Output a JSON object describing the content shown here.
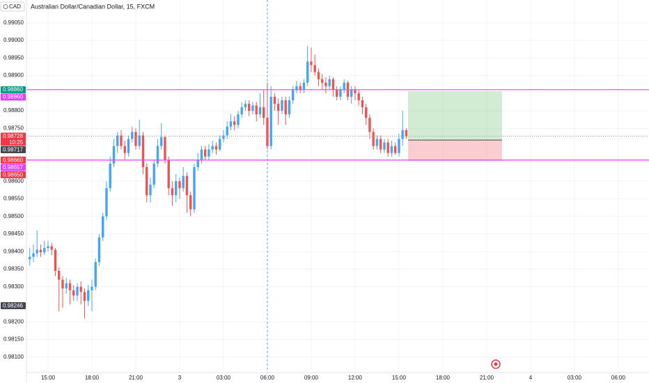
{
  "chart_data": {
    "type": "candlestick",
    "title": "Australian Dollar/Canadian Dollar, 15, FXCM",
    "currency": "CAD",
    "open": [
      0.98378,
      0.98385,
      0.98395,
      0.98405,
      0.98398,
      0.9841,
      0.98415,
      0.98405,
      0.98345,
      0.9832,
      0.98295,
      0.9831,
      0.9829,
      0.98275,
      0.983,
      0.98285,
      0.9826,
      0.9829,
      0.983,
      0.9837,
      0.9844,
      0.985,
      0.9858,
      0.9865,
      0.987,
      0.9873,
      0.987,
      0.9868,
      0.9872,
      0.9874,
      0.987,
      0.9873,
      0.9864,
      0.9856,
      0.9859,
      0.9865,
      0.987,
      0.98725,
      0.9866,
      0.9858,
      0.9856,
      0.986,
      0.9858,
      0.98615,
      0.9856,
      0.9852,
      0.9864,
      0.9866,
      0.9869,
      0.9867,
      0.9869,
      0.987,
      0.9869,
      0.9872,
      0.9873,
      0.98755,
      0.9877,
      0.9876,
      0.9879,
      0.9881,
      0.9882,
      0.988,
      0.98815,
      0.9879,
      0.9881,
      0.9878,
      0.987,
      0.9884,
      0.9882,
      0.988,
      0.9883,
      0.9879,
      0.9883,
      0.9886,
      0.9887,
      0.9886,
      0.9888,
      0.9894,
      0.9893,
      0.9891,
      0.9889,
      0.9888,
      0.9887,
      0.9889,
      0.9886,
      0.9884,
      0.9886,
      0.9888,
      0.9884,
      0.9886,
      0.9885,
      0.9883,
      0.9881,
      0.9878,
      0.9874,
      0.987,
      0.9872,
      0.9869,
      0.9871,
      0.9868,
      0.987,
      0.9868,
      0.9872,
      0.98745
    ],
    "high": [
      0.9841,
      0.9842,
      0.9846,
      0.9842,
      0.9843,
      0.9843,
      0.98425,
      0.9841,
      0.98355,
      0.9833,
      0.98325,
      0.9832,
      0.98305,
      0.9831,
      0.98315,
      0.98295,
      0.98305,
      0.9832,
      0.9838,
      0.9845,
      0.9851,
      0.986,
      0.9867,
      0.9872,
      0.9874,
      0.98745,
      0.98715,
      0.9873,
      0.98755,
      0.9875,
      0.98775,
      0.9874,
      0.9865,
      0.9861,
      0.9866,
      0.9872,
      0.98765,
      0.9873,
      0.9867,
      0.986,
      0.9862,
      0.9861,
      0.9864,
      0.98625,
      0.9857,
      0.9865,
      0.9868,
      0.987,
      0.987,
      0.98705,
      0.98715,
      0.9871,
      0.9873,
      0.98745,
      0.9877,
      0.9879,
      0.98785,
      0.988,
      0.98825,
      0.9883,
      0.9883,
      0.98825,
      0.98825,
      0.9885,
      0.9886,
      0.9888,
      0.9887,
      0.9885,
      0.98835,
      0.9884,
      0.9884,
      0.9884,
      0.9887,
      0.98885,
      0.9888,
      0.9889,
      0.98985,
      0.9898,
      0.9896,
      0.9892,
      0.98905,
      0.98895,
      0.989,
      0.98895,
      0.9887,
      0.9887,
      0.9889,
      0.98885,
      0.9887,
      0.9887,
      0.9886,
      0.9884,
      0.9882,
      0.9879,
      0.9875,
      0.9873,
      0.9873,
      0.9872,
      0.9872,
      0.98715,
      0.9871,
      0.98735,
      0.988,
      0.9875
    ],
    "low": [
      0.9836,
      0.9837,
      0.98385,
      0.98385,
      0.9839,
      0.984,
      0.9839,
      0.9833,
      0.9823,
      0.9824,
      0.9828,
      0.9825,
      0.9826,
      0.9826,
      0.9825,
      0.9821,
      0.98245,
      0.9823,
      0.9829,
      0.9836,
      0.9843,
      0.9849,
      0.9857,
      0.9864,
      0.9868,
      0.9869,
      0.9866,
      0.9867,
      0.9871,
      0.9869,
      0.9869,
      0.9862,
      0.9854,
      0.9854,
      0.9858,
      0.9864,
      0.9869,
      0.9865,
      0.9856,
      0.9853,
      0.9854,
      0.9855,
      0.9857,
      0.9851,
      0.985,
      0.9851,
      0.9863,
      0.9865,
      0.9866,
      0.9866,
      0.9868,
      0.98675,
      0.98685,
      0.9871,
      0.9872,
      0.98745,
      0.98745,
      0.9875,
      0.9878,
      0.988,
      0.98785,
      0.9879,
      0.9877,
      0.9878,
      0.9876,
      0.9869,
      0.9869,
      0.988,
      0.9876,
      0.9879,
      0.9876,
      0.9878,
      0.9882,
      0.9885,
      0.9885,
      0.9885,
      0.9887,
      0.9891,
      0.989,
      0.9887,
      0.9886,
      0.9885,
      0.9886,
      0.9884,
      0.9883,
      0.9883,
      0.9885,
      0.9883,
      0.9882,
      0.9883,
      0.98815,
      0.9879,
      0.9876,
      0.9872,
      0.9869,
      0.9869,
      0.9868,
      0.9868,
      0.9867,
      0.9867,
      0.98675,
      0.9867,
      0.987,
      0.9872
    ],
    "close": [
      0.98385,
      0.98395,
      0.98405,
      0.98398,
      0.9841,
      0.98415,
      0.98405,
      0.98345,
      0.9832,
      0.98295,
      0.9831,
      0.9829,
      0.98275,
      0.983,
      0.98285,
      0.9826,
      0.9829,
      0.983,
      0.9837,
      0.9844,
      0.985,
      0.9858,
      0.9865,
      0.987,
      0.9873,
      0.987,
      0.9868,
      0.9872,
      0.9874,
      0.987,
      0.9873,
      0.9864,
      0.9856,
      0.9859,
      0.9865,
      0.987,
      0.98725,
      0.9866,
      0.9858,
      0.9856,
      0.986,
      0.9858,
      0.98615,
      0.9856,
      0.9852,
      0.9864,
      0.9866,
      0.9869,
      0.9867,
      0.9869,
      0.987,
      0.9869,
      0.9872,
      0.9873,
      0.98755,
      0.9877,
      0.9876,
      0.9879,
      0.9881,
      0.9882,
      0.988,
      0.98815,
      0.9879,
      0.9881,
      0.9878,
      0.987,
      0.9884,
      0.9882,
      0.988,
      0.9883,
      0.9879,
      0.9883,
      0.9886,
      0.9887,
      0.9886,
      0.9888,
      0.9894,
      0.9893,
      0.9891,
      0.9889,
      0.9888,
      0.9887,
      0.9889,
      0.9886,
      0.9884,
      0.9886,
      0.9888,
      0.9884,
      0.9886,
      0.9885,
      0.9883,
      0.9881,
      0.9878,
      0.9874,
      0.987,
      0.9872,
      0.9869,
      0.9871,
      0.9868,
      0.987,
      0.9868,
      0.9872,
      0.98745,
      0.98728
    ],
    "up_color": "#42a5f5",
    "down_color": "#ef5350",
    "ylim": [
      0.98056,
      0.99115
    ],
    "yticks": [
      {
        "value": 0.9905,
        "label": "0.99050"
      },
      {
        "value": 0.99,
        "label": "0.99000"
      },
      {
        "value": 0.9895,
        "label": "0.98950"
      },
      {
        "value": 0.989,
        "label": "0.98900"
      },
      {
        "value": 0.988,
        "label": "0.98800"
      },
      {
        "value": 0.9875,
        "label": "0.98750"
      },
      {
        "value": 0.986,
        "label": "0.98600"
      },
      {
        "value": 0.9855,
        "label": "0.98550"
      },
      {
        "value": 0.985,
        "label": "0.98500"
      },
      {
        "value": 0.9845,
        "label": "0.98450"
      },
      {
        "value": 0.984,
        "label": "0.98400"
      },
      {
        "value": 0.9835,
        "label": "0.98350"
      },
      {
        "value": 0.983,
        "label": "0.98300"
      },
      {
        "value": 0.982,
        "label": "0.98200"
      },
      {
        "value": 0.9815,
        "label": "0.98150"
      },
      {
        "value": 0.981,
        "label": "0.98100"
      }
    ],
    "xlim": [
      -0.9,
      169.4
    ],
    "xticks": [
      {
        "value": 5,
        "label": "15:00"
      },
      {
        "value": 17,
        "label": "18:00"
      },
      {
        "value": 29,
        "label": "21:00"
      },
      {
        "value": 41,
        "label": "3"
      },
      {
        "value": 53,
        "label": "03:00"
      },
      {
        "value": 65,
        "label": "06:00"
      },
      {
        "value": 77,
        "label": "09:00"
      },
      {
        "value": 89,
        "label": "12:00"
      },
      {
        "value": 101,
        "label": "15:00"
      },
      {
        "value": 113,
        "label": "18:00"
      },
      {
        "value": 125,
        "label": "21:00"
      },
      {
        "value": 137,
        "label": "4"
      },
      {
        "value": 149,
        "label": "03:00"
      },
      {
        "value": 161,
        "label": "06:00"
      }
    ],
    "grid": true,
    "hlines": [
      {
        "value": 0.9886,
        "color": "#e040fb"
      },
      {
        "value": 0.9866,
        "color": "#e040fb"
      }
    ],
    "vline": {
      "value": 65,
      "color": "#5b9cf6"
    },
    "position": {
      "entry": 0.98717,
      "target": 0.98856,
      "stop": 0.98658,
      "start": 103.5,
      "end": 129.2
    },
    "price_labels": [
      {
        "value": 0.9886,
        "label": "0.98860",
        "color": "#089981"
      },
      {
        "value": 0.9886,
        "label": "0.98860",
        "color": "#e040fb"
      },
      {
        "value": 0.98728,
        "label": "0.98728",
        "color": "#f23645",
        "countdown": "10:25"
      },
      {
        "value": 0.98717,
        "label": "0.98717",
        "color": "#434651"
      },
      {
        "value": 0.9866,
        "label": "0.98660",
        "color": "#f23645"
      },
      {
        "value": 0.98657,
        "label": "0.98657",
        "color": "#e040fb"
      },
      {
        "value": 0.9865,
        "label": "0.98650",
        "color": "#f23645"
      },
      {
        "value": 0.98246,
        "label": "0.98246",
        "color": "#434651"
      }
    ]
  }
}
